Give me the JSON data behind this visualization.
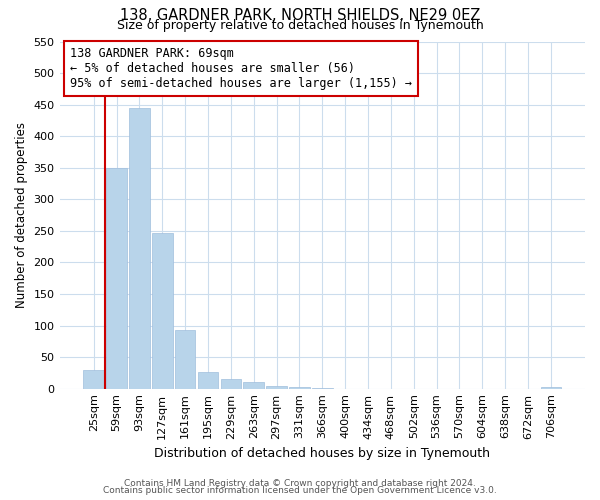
{
  "title": "138, GARDNER PARK, NORTH SHIELDS, NE29 0EZ",
  "subtitle": "Size of property relative to detached houses in Tynemouth",
  "xlabel": "Distribution of detached houses by size in Tynemouth",
  "ylabel": "Number of detached properties",
  "bar_labels": [
    "25sqm",
    "59sqm",
    "93sqm",
    "127sqm",
    "161sqm",
    "195sqm",
    "229sqm",
    "263sqm",
    "297sqm",
    "331sqm",
    "366sqm",
    "400sqm",
    "434sqm",
    "468sqm",
    "502sqm",
    "536sqm",
    "570sqm",
    "604sqm",
    "638sqm",
    "672sqm",
    "706sqm"
  ],
  "bar_values": [
    30,
    350,
    445,
    247,
    93,
    27,
    16,
    10,
    5,
    2,
    1,
    0,
    0,
    0,
    0,
    0,
    0,
    0,
    0,
    0,
    3
  ],
  "bar_color": "#b8d4ea",
  "bar_edge_color": "#a0bedd",
  "vline_color": "#cc0000",
  "vline_x": 0.5,
  "annotation_title": "138 GARDNER PARK: 69sqm",
  "annotation_line1": "← 5% of detached houses are smaller (56)",
  "annotation_line2": "95% of semi-detached houses are larger (1,155) →",
  "ylim": [
    0,
    550
  ],
  "yticks": [
    0,
    50,
    100,
    150,
    200,
    250,
    300,
    350,
    400,
    450,
    500,
    550
  ],
  "footnote1": "Contains HM Land Registry data © Crown copyright and database right 2024.",
  "footnote2": "Contains public sector information licensed under the Open Government Licence v3.0.",
  "background_color": "#ffffff",
  "grid_color": "#ccdded"
}
